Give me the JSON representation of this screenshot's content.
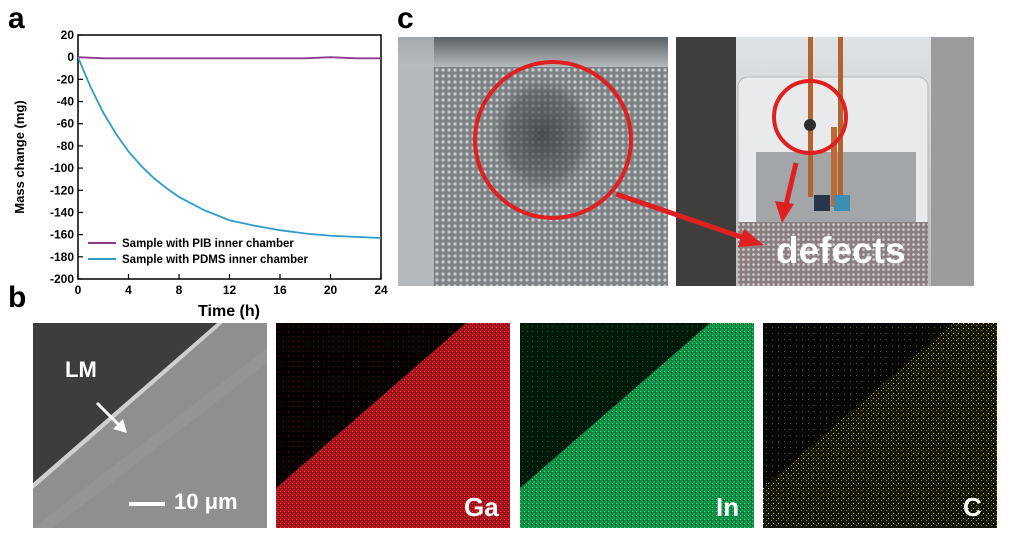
{
  "panels": {
    "a": {
      "letter": "a"
    },
    "b": {
      "letter": "b"
    },
    "c": {
      "letter": "c"
    }
  },
  "chart_data": {
    "type": "line",
    "xlabel": "Time (h)",
    "ylabel": "Mass change (mg)",
    "xlim": [
      0,
      24
    ],
    "ylim": [
      -200,
      20
    ],
    "xticks": [
      0,
      4,
      8,
      12,
      16,
      20,
      24
    ],
    "yticks": [
      20,
      0,
      -20,
      -40,
      -60,
      -80,
      -100,
      -120,
      -140,
      -160,
      -180,
      -200
    ],
    "legend_position": "bottom-left",
    "grid": false,
    "series": [
      {
        "name": "Sample with PIB inner chamber",
        "color": "#8a3c8f",
        "x": [
          0,
          2,
          4,
          6,
          8,
          10,
          12,
          14,
          16,
          18,
          20,
          22,
          24
        ],
        "y": [
          0,
          -1,
          -1,
          -1,
          -1,
          -1,
          -1,
          -1,
          -1,
          -1,
          0,
          -1,
          -1
        ]
      },
      {
        "name": "Sample with PDMS inner chamber",
        "color": "#2f9bc7",
        "x": [
          0,
          1,
          2,
          3,
          4,
          5,
          6,
          7,
          8,
          10,
          12,
          14,
          16,
          18,
          20,
          22,
          24
        ],
        "y": [
          0,
          -27,
          -50,
          -69,
          -85,
          -98,
          -109,
          -118,
          -126,
          -138,
          -147,
          -152,
          -156,
          -159,
          -161,
          -162,
          -163
        ]
      }
    ]
  },
  "panel_b": {
    "scale_bar": "10 μm",
    "arrow_label": "LM",
    "maps": [
      {
        "label": "Ga",
        "color": "#e0202a"
      },
      {
        "label": "In",
        "color": "#18b85a"
      },
      {
        "label": "C",
        "color": "#c9c43a"
      }
    ]
  },
  "panel_c": {
    "annotation": "defects",
    "annotation_color": "#e02020"
  }
}
